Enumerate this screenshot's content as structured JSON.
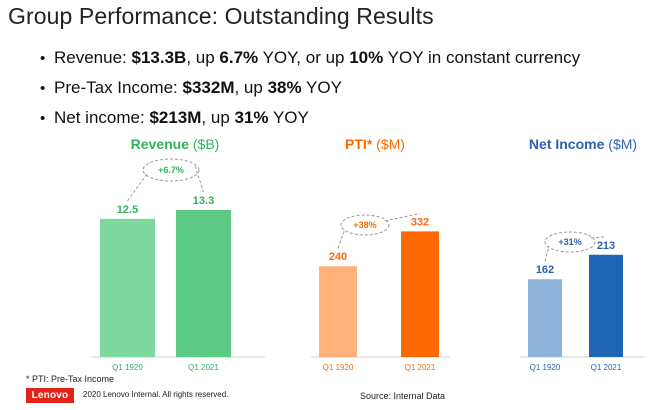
{
  "slide": {
    "title": "Group Performance: Outstanding Results"
  },
  "bullets": [
    {
      "bullet": "•",
      "label": "Revenue: ",
      "v1": "$13.3B",
      "t1": ", up ",
      "v2": "6.7%",
      "t2": " YOY, or up ",
      "v3": "10%",
      "t3": " YOY in constant currency"
    },
    {
      "bullet": "•",
      "label": "Pre-Tax Income: ",
      "v1": "$332M",
      "t1": ", up ",
      "v2": "38%",
      "t2": " YOY"
    },
    {
      "bullet": "•",
      "label": "Net income: ",
      "v1": "$213M",
      "t1": ", up ",
      "v2": "31%",
      "t2": " YOY"
    }
  ],
  "chart_data": [
    {
      "type": "bar",
      "title": "Revenue",
      "unit": "($B)",
      "categories": [
        "Q1 1920",
        "Q1 2021"
      ],
      "values": [
        12.5,
        13.3
      ],
      "value_labels": [
        "12.5",
        "13.3"
      ],
      "annotation": "+6.7%",
      "colors": [
        "#7fd8a0",
        "#5cc985"
      ],
      "label_color": "#2db45c",
      "ylim": [
        0,
        15.2
      ]
    },
    {
      "type": "bar",
      "title": "PTI*",
      "unit": "($M)",
      "categories": [
        "Q1 1920",
        "Q1 2021"
      ],
      "values": [
        240,
        332
      ],
      "value_labels": [
        "240",
        "332"
      ],
      "annotation": "+38%",
      "colors": [
        "#ffb27a",
        "#ff6a00"
      ],
      "label_color": "#ff6a00",
      "ylim": [
        0,
        444
      ]
    },
    {
      "type": "bar",
      "title": "Net Income",
      "unit": "($M)",
      "categories": [
        "Q1 1920",
        "Q1 2021"
      ],
      "values": [
        162,
        213
      ],
      "value_labels": [
        "162",
        "213"
      ],
      "annotation": "+31%",
      "colors": [
        "#8fb4dc",
        "#1f65b5"
      ],
      "label_color": "#2b64ad",
      "ylim": [
        0,
        350
      ]
    }
  ],
  "footer": {
    "footnote": "* PTI: Pre-Tax Income",
    "logo": "Lenovo",
    "copyright": "2020 Lenovo Internal. All rights reserved.",
    "source": "Source: Internal Data"
  }
}
